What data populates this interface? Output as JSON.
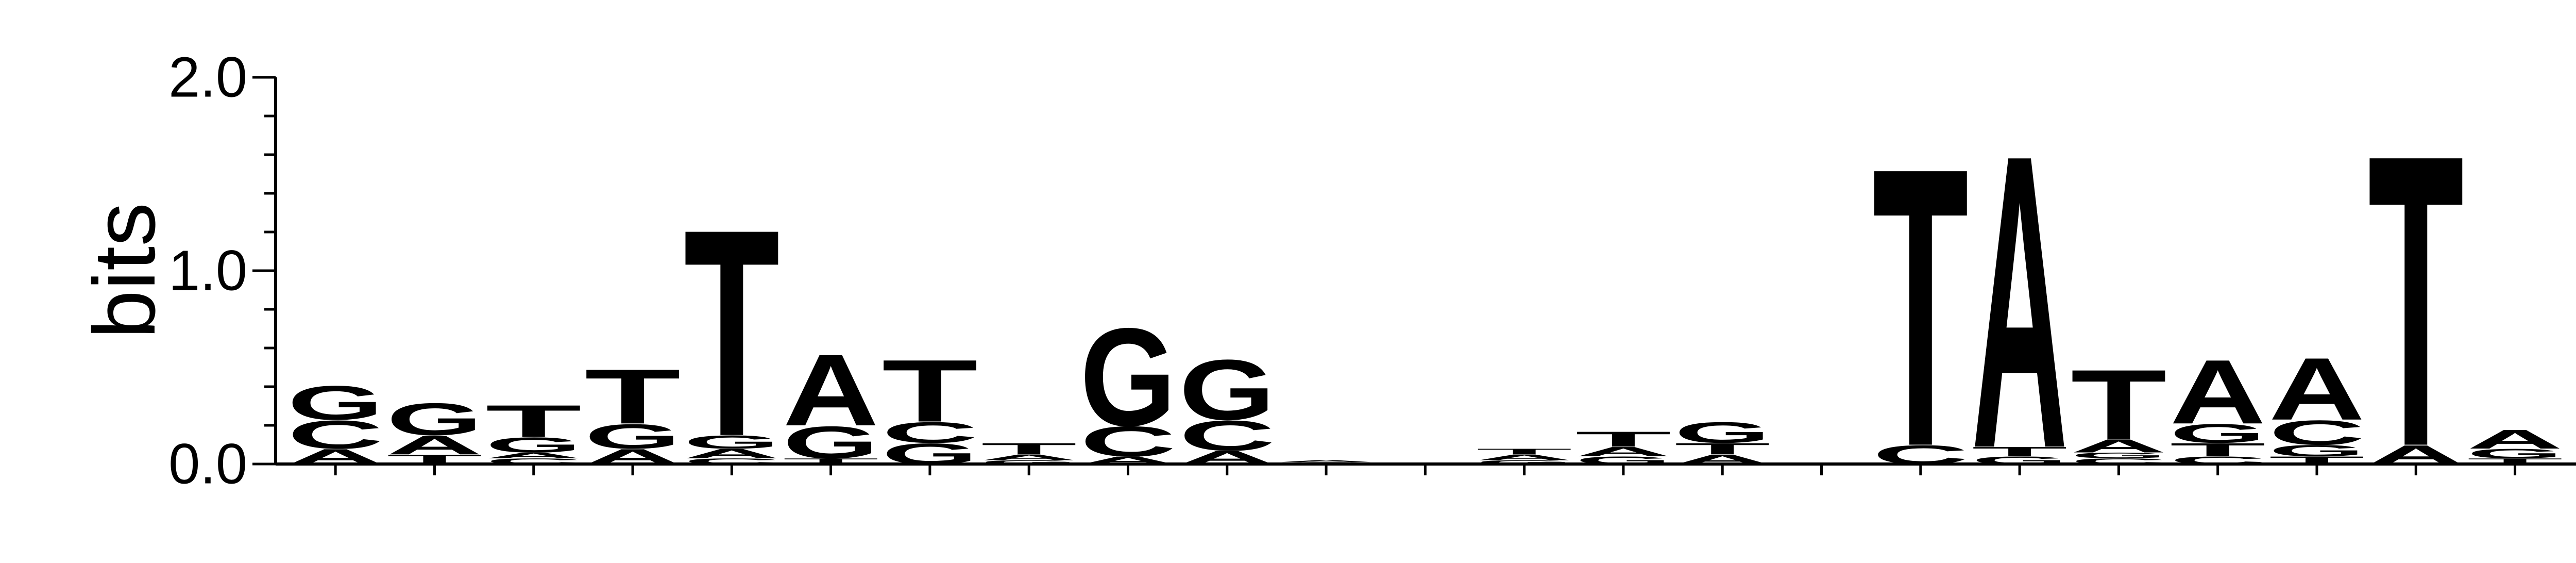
{
  "chart_data": {
    "type": "sequence-logo",
    "ylabel": "bits",
    "ylim": [
      0,
      2.0
    ],
    "y_ticks": [
      {
        "value": 0.0,
        "label": "0.0"
      },
      {
        "value": 1.0,
        "label": "1.0"
      },
      {
        "value": 2.0,
        "label": "2.0"
      }
    ],
    "y_minor_step": 0.2,
    "colors": {
      "A": "#008000",
      "C": "#0000ff",
      "G": "#ffa500",
      "T": "#ff0000"
    },
    "positions": [
      {
        "letters": [
          {
            "base": "A",
            "bits": 0.08
          },
          {
            "base": "C",
            "bits": 0.15
          },
          {
            "base": "G",
            "bits": 0.18
          }
        ]
      },
      {
        "letters": [
          {
            "base": "T",
            "bits": 0.05
          },
          {
            "base": "A",
            "bits": 0.1
          },
          {
            "base": "G",
            "bits": 0.17
          }
        ]
      },
      {
        "letters": [
          {
            "base": "C",
            "bits": 0.03
          },
          {
            "base": "A",
            "bits": 0.03
          },
          {
            "base": "G",
            "bits": 0.08
          },
          {
            "base": "T",
            "bits": 0.17
          }
        ]
      },
      {
        "letters": [
          {
            "base": "A",
            "bits": 0.08
          },
          {
            "base": "G",
            "bits": 0.13
          },
          {
            "base": "T",
            "bits": 0.29
          }
        ]
      },
      {
        "letters": [
          {
            "base": "C",
            "bits": 0.03
          },
          {
            "base": "A",
            "bits": 0.05
          },
          {
            "base": "G",
            "bits": 0.07
          },
          {
            "base": "T",
            "bits": 1.1
          }
        ]
      },
      {
        "letters": [
          {
            "base": "T",
            "bits": 0.03
          },
          {
            "base": "G",
            "bits": 0.17
          },
          {
            "base": "A",
            "bits": 0.38
          }
        ]
      },
      {
        "letters": [
          {
            "base": "G",
            "bits": 0.11
          },
          {
            "base": "C",
            "bits": 0.11
          },
          {
            "base": "T",
            "bits": 0.33
          }
        ]
      },
      {
        "letters": [
          {
            "base": "G",
            "bits": 0.02
          },
          {
            "base": "A",
            "bits": 0.03
          },
          {
            "base": "T",
            "bits": 0.06
          }
        ]
      },
      {
        "letters": [
          {
            "base": "A",
            "bits": 0.04
          },
          {
            "base": "C",
            "bits": 0.16
          },
          {
            "base": "G",
            "bits": 0.52
          }
        ]
      },
      {
        "letters": [
          {
            "base": "A",
            "bits": 0.07
          },
          {
            "base": "C",
            "bits": 0.16
          },
          {
            "base": "G",
            "bits": 0.32
          }
        ]
      },
      {
        "letters": [
          {
            "base": "G",
            "bits": 0.01
          },
          {
            "base": "A",
            "bits": 0.01
          }
        ]
      },
      {
        "letters": []
      },
      {
        "letters": [
          {
            "base": "G",
            "bits": 0.02
          },
          {
            "base": "A",
            "bits": 0.03
          },
          {
            "base": "T",
            "bits": 0.03
          }
        ]
      },
      {
        "letters": [
          {
            "base": "G",
            "bits": 0.04
          },
          {
            "base": "A",
            "bits": 0.05
          },
          {
            "base": "T",
            "bits": 0.08
          }
        ]
      },
      {
        "letters": [
          {
            "base": "A",
            "bits": 0.05
          },
          {
            "base": "T",
            "bits": 0.06
          },
          {
            "base": "G",
            "bits": 0.11
          }
        ]
      },
      {
        "letters": []
      },
      {
        "letters": [
          {
            "base": "C",
            "bits": 0.1
          },
          {
            "base": "T",
            "bits": 1.48
          }
        ]
      },
      {
        "letters": [
          {
            "base": "G",
            "bits": 0.04
          },
          {
            "base": "T",
            "bits": 0.05
          },
          {
            "base": "A",
            "bits": 1.56
          }
        ]
      },
      {
        "letters": [
          {
            "base": "C",
            "bits": 0.03
          },
          {
            "base": "G",
            "bits": 0.03
          },
          {
            "base": "A",
            "bits": 0.07
          },
          {
            "base": "T",
            "bits": 0.37
          }
        ]
      },
      {
        "letters": [
          {
            "base": "C",
            "bits": 0.04
          },
          {
            "base": "T",
            "bits": 0.07
          },
          {
            "base": "G",
            "bits": 0.1
          },
          {
            "base": "A",
            "bits": 0.34
          }
        ]
      },
      {
        "letters": [
          {
            "base": "T",
            "bits": 0.04
          },
          {
            "base": "G",
            "bits": 0.06
          },
          {
            "base": "C",
            "bits": 0.13
          },
          {
            "base": "A",
            "bits": 0.33
          }
        ]
      },
      {
        "letters": [
          {
            "base": "A",
            "bits": 0.1
          },
          {
            "base": "T",
            "bits": 1.55
          }
        ]
      },
      {
        "letters": [
          {
            "base": "T",
            "bits": 0.03
          },
          {
            "base": "G",
            "bits": 0.05
          },
          {
            "base": "A",
            "bits": 0.1
          }
        ]
      },
      {
        "letters": []
      }
    ]
  }
}
